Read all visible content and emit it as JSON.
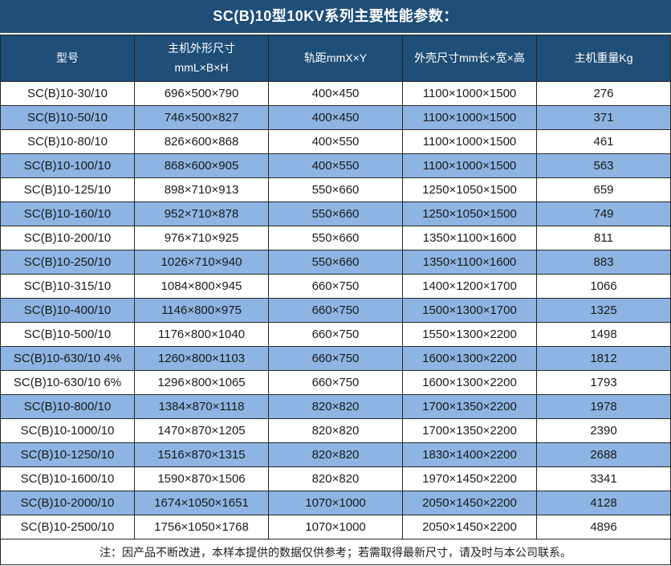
{
  "title": "SC(B)10型10KV系列主要性能参数：",
  "colors": {
    "title_header_bg": "#1F4E79",
    "header_text": "#FFFFFF",
    "row_alt_bg": "#8DB4E2",
    "row_bg": "#FFFFFF",
    "grid_line": "#262626",
    "body_text": "#1A1A1A"
  },
  "table": {
    "headers": [
      {
        "id": "model",
        "lines": [
          "型号"
        ]
      },
      {
        "id": "host-dimensions",
        "lines": [
          "主机外形尺寸",
          "mmL×B×H"
        ]
      },
      {
        "id": "rail-gauge",
        "lines": [
          "轨距mmX×Y"
        ]
      },
      {
        "id": "shell-dimensions",
        "lines": [
          "外壳尺寸mm长×宽×高"
        ]
      },
      {
        "id": "host-weight",
        "lines": [
          "主机重量Kg"
        ]
      }
    ],
    "rows": [
      [
        "SC(B)10-30/10",
        "696×500×790",
        "400×450",
        "1100×1000×1500",
        "276"
      ],
      [
        "SC(B)10-50/10",
        "746×500×827",
        "400×450",
        "1100×1000×1500",
        "371"
      ],
      [
        "SC(B)10-80/10",
        "826×600×868",
        "400×550",
        "1100×1000×1500",
        "461"
      ],
      [
        "SC(B)10-100/10",
        "868×600×905",
        "400×550",
        "1100×1000×1500",
        "563"
      ],
      [
        "SC(B)10-125/10",
        "898×710×913",
        "550×660",
        "1250×1050×1500",
        "659"
      ],
      [
        "SC(B)10-160/10",
        "952×710×878",
        "550×660",
        "1250×1050×1500",
        "749"
      ],
      [
        "SC(B)10-200/10",
        "976×710×925",
        "550×660",
        "1350×1100×1600",
        "811"
      ],
      [
        "SC(B)10-250/10",
        "1026×710×940",
        "550×660",
        "1350×1100×1600",
        "883"
      ],
      [
        "SC(B)10-315/10",
        "1084×800×945",
        "660×750",
        "1400×1200×1700",
        "1066"
      ],
      [
        "SC(B)10-400/10",
        "1146×800×975",
        "660×750",
        "1500×1300×1700",
        "1325"
      ],
      [
        "SC(B)10-500/10",
        "1176×800×1040",
        "660×750",
        "1550×1300×2200",
        "1498"
      ],
      [
        "SC(B)10-630/10 4%",
        "1260×800×1103",
        "660×750",
        "1600×1300×2200",
        "1812"
      ],
      [
        "SC(B)10-630/10 6%",
        "1296×800×1065",
        "660×750",
        "1600×1300×2200",
        "1793"
      ],
      [
        "SC(B)10-800/10",
        "1384×870×1118",
        "820×820",
        "1700×1350×2200",
        "1978"
      ],
      [
        "SC(B)10-1000/10",
        "1470×870×1205",
        "820×820",
        "1700×1350×2200",
        "2390"
      ],
      [
        "SC(B)10-1250/10",
        "1516×870×1315",
        "820×820",
        "1830×1400×2200",
        "2688"
      ],
      [
        "SC(B)10-1600/10",
        "1590×870×1506",
        "820×820",
        "1970×1450×2200",
        "3341"
      ],
      [
        "SC(B)10-2000/10",
        "1674×1050×1651",
        "1070×1000",
        "2050×1450×2200",
        "4128"
      ],
      [
        "SC(B)10-2500/10",
        "1756×1050×1768",
        "1070×1000",
        "2050×1450×2200",
        "4896"
      ]
    ]
  },
  "note": "注：因产品不断改进，本样本提供的数据仅供参考；若需取得最新尺寸，请及时与本公司联系。"
}
